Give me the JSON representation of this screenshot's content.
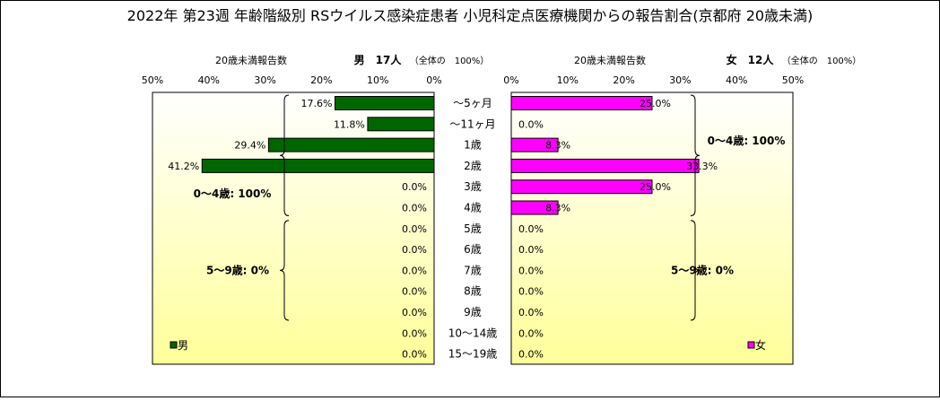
{
  "title": "2022年 第23週 年齢階級別 RSウイルス感染症患者 小児科定点医療機関からの報告割合(京都府 20歳未満)",
  "colors": {
    "male": "#006600",
    "female": "#ff00ff",
    "plot_top": "#ffffff",
    "plot_bottom": "#ffff99",
    "label_bg": "#ffffff"
  },
  "chart_data": [
    {
      "type": "bar",
      "orientation": "horizontal",
      "side": "left",
      "header_label": "20歳未満報告数",
      "header_count": "男　17人",
      "header_total": "（全体の　100%）",
      "ticks": [
        "50%",
        "40%",
        "30%",
        "20%",
        "10%",
        "0%"
      ],
      "xlim": [
        0,
        50
      ],
      "categories": [
        "～5ヶ月",
        "～11ヶ月",
        "1歳",
        "2歳",
        "3歳",
        "4歳",
        "5歳",
        "6歳",
        "7歳",
        "8歳",
        "9歳",
        "10～14歳",
        "15～19歳"
      ],
      "series": [
        {
          "name": "男",
          "values": [
            17.6,
            11.8,
            29.4,
            41.2,
            0.0,
            0.0,
            0.0,
            0.0,
            0.0,
            0.0,
            0.0,
            0.0,
            0.0
          ],
          "labels": [
            "17.6%",
            "11.8%",
            "29.4%",
            "41.2%",
            "0.0%",
            "0.0%",
            "0.0%",
            "0.0%",
            "0.0%",
            "0.0%",
            "0.0%",
            "0.0%",
            "0.0%"
          ]
        }
      ],
      "groups": [
        {
          "label": "0～4歳: 100%",
          "from": 0,
          "to": 5
        },
        {
          "label": "5～9歳: 0%",
          "from": 6,
          "to": 10
        }
      ]
    },
    {
      "type": "bar",
      "orientation": "horizontal",
      "side": "right",
      "header_label": "20歳未満報告数",
      "header_count": "女　12人",
      "header_total": "（全体の　100%）",
      "ticks": [
        "0%",
        "10%",
        "20%",
        "30%",
        "40%",
        "50%"
      ],
      "xlim": [
        0,
        50
      ],
      "categories": [
        "～5ヶ月",
        "～11ヶ月",
        "1歳",
        "2歳",
        "3歳",
        "4歳",
        "5歳",
        "6歳",
        "7歳",
        "8歳",
        "9歳",
        "10～14歳",
        "15～19歳"
      ],
      "series": [
        {
          "name": "女",
          "values": [
            25.0,
            0.0,
            8.3,
            33.3,
            25.0,
            8.3,
            0.0,
            0.0,
            0.0,
            0.0,
            0.0,
            0.0,
            0.0
          ],
          "labels": [
            "25.0%",
            "0.0%",
            "8.3%",
            "33.3%",
            "25.0%",
            "8.3%",
            "0.0%",
            "0.0%",
            "0.0%",
            "0.0%",
            "0.0%",
            "0.0%",
            "0.0%"
          ]
        }
      ],
      "groups": [
        {
          "label": "0～4歳: 100%",
          "from": 0,
          "to": 5
        },
        {
          "label": "5～9歳: 0%",
          "from": 6,
          "to": 10
        }
      ]
    }
  ]
}
